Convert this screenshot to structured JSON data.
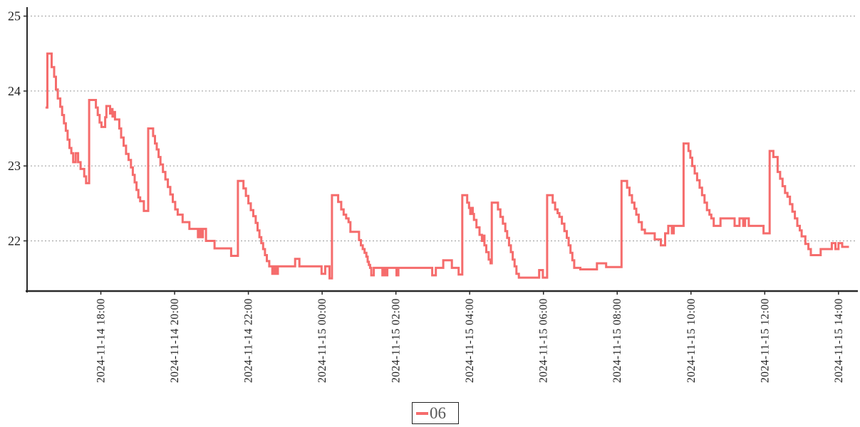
{
  "chart_data": {
    "type": "line",
    "step": "after",
    "title": "",
    "xlabel": "",
    "ylabel": "",
    "grid": "horizontal-dotted",
    "legend_position": "bottom-center",
    "series": [
      {
        "name": "06",
        "color": "#f56c6c",
        "line_width": 3,
        "points_format": "[minutes_since_2024-11-14T16:00, value]",
        "points": [
          [
            30,
            23.78
          ],
          [
            33,
            24.5
          ],
          [
            38,
            24.5
          ],
          [
            40,
            24.32
          ],
          [
            44,
            24.19
          ],
          [
            47,
            24.02
          ],
          [
            50,
            23.9
          ],
          [
            54,
            23.79
          ],
          [
            57,
            23.68
          ],
          [
            60,
            23.57
          ],
          [
            63,
            23.47
          ],
          [
            66,
            23.35
          ],
          [
            69,
            23.24
          ],
          [
            72,
            23.17
          ],
          [
            75,
            23.05
          ],
          [
            79,
            23.17
          ],
          [
            83,
            23.05
          ],
          [
            87,
            22.96
          ],
          [
            93,
            22.86
          ],
          [
            96,
            22.77
          ],
          [
            101,
            23.88
          ],
          [
            110,
            23.88
          ],
          [
            112,
            23.78
          ],
          [
            115,
            23.68
          ],
          [
            118,
            23.58
          ],
          [
            121,
            23.52
          ],
          [
            126,
            23.52
          ],
          [
            127,
            23.65
          ],
          [
            129,
            23.8
          ],
          [
            134,
            23.8
          ],
          [
            135,
            23.7
          ],
          [
            137,
            23.76
          ],
          [
            139,
            23.66
          ],
          [
            141,
            23.72
          ],
          [
            143,
            23.62
          ],
          [
            148,
            23.62
          ],
          [
            150,
            23.5
          ],
          [
            153,
            23.38
          ],
          [
            157,
            23.27
          ],
          [
            161,
            23.16
          ],
          [
            165,
            23.08
          ],
          [
            169,
            22.98
          ],
          [
            172,
            22.88
          ],
          [
            175,
            22.78
          ],
          [
            178,
            22.68
          ],
          [
            181,
            22.58
          ],
          [
            184,
            22.53
          ],
          [
            189,
            22.53
          ],
          [
            190,
            22.4
          ],
          [
            196,
            22.4
          ],
          [
            197,
            23.5
          ],
          [
            203,
            23.5
          ],
          [
            205,
            23.4
          ],
          [
            208,
            23.3
          ],
          [
            211,
            23.22
          ],
          [
            214,
            23.12
          ],
          [
            217,
            23.02
          ],
          [
            221,
            22.92
          ],
          [
            225,
            22.82
          ],
          [
            229,
            22.72
          ],
          [
            233,
            22.62
          ],
          [
            237,
            22.52
          ],
          [
            241,
            22.42
          ],
          [
            245,
            22.35
          ],
          [
            252,
            22.35
          ],
          [
            253,
            22.25
          ],
          [
            262,
            22.25
          ],
          [
            264,
            22.16
          ],
          [
            276,
            22.16
          ],
          [
            278,
            22.05
          ],
          [
            280,
            22.16
          ],
          [
            283,
            22.05
          ],
          [
            286,
            22.16
          ],
          [
            289,
            22.16
          ],
          [
            291,
            22.0
          ],
          [
            303,
            22.0
          ],
          [
            305,
            21.9
          ],
          [
            330,
            21.9
          ],
          [
            332,
            21.8
          ],
          [
            341,
            21.8
          ],
          [
            343,
            22.8
          ],
          [
            350,
            22.8
          ],
          [
            352,
            22.7
          ],
          [
            356,
            22.6
          ],
          [
            360,
            22.5
          ],
          [
            364,
            22.41
          ],
          [
            368,
            22.33
          ],
          [
            372,
            22.24
          ],
          [
            375,
            22.14
          ],
          [
            378,
            22.05
          ],
          [
            381,
            21.97
          ],
          [
            384,
            21.89
          ],
          [
            387,
            21.81
          ],
          [
            390,
            21.73
          ],
          [
            394,
            21.66
          ],
          [
            397,
            21.66
          ],
          [
            399,
            21.56
          ],
          [
            402,
            21.66
          ],
          [
            405,
            21.56
          ],
          [
            408,
            21.66
          ],
          [
            434,
            21.66
          ],
          [
            436,
            21.76
          ],
          [
            441,
            21.76
          ],
          [
            443,
            21.66
          ],
          [
            477,
            21.66
          ],
          [
            479,
            21.56
          ],
          [
            485,
            21.66
          ],
          [
            490,
            21.66
          ],
          [
            492,
            21.5
          ],
          [
            495,
            21.5
          ],
          [
            496,
            22.61
          ],
          [
            504,
            22.61
          ],
          [
            506,
            22.52
          ],
          [
            511,
            22.42
          ],
          [
            515,
            22.35
          ],
          [
            519,
            22.3
          ],
          [
            523,
            22.25
          ],
          [
            526,
            22.12
          ],
          [
            538,
            22.12
          ],
          [
            540,
            22.01
          ],
          [
            543,
            21.94
          ],
          [
            546,
            21.89
          ],
          [
            549,
            21.84
          ],
          [
            552,
            21.79
          ],
          [
            554,
            21.72
          ],
          [
            556,
            21.68
          ],
          [
            558,
            21.64
          ],
          [
            560,
            21.54
          ],
          [
            564,
            21.64
          ],
          [
            576,
            21.64
          ],
          [
            578,
            21.54
          ],
          [
            581,
            21.64
          ],
          [
            583,
            21.54
          ],
          [
            586,
            21.64
          ],
          [
            599,
            21.64
          ],
          [
            601,
            21.54
          ],
          [
            604,
            21.64
          ],
          [
            657,
            21.64
          ],
          [
            659,
            21.54
          ],
          [
            665,
            21.64
          ],
          [
            675,
            21.64
          ],
          [
            677,
            21.74
          ],
          [
            689,
            21.74
          ],
          [
            691,
            21.64
          ],
          [
            700,
            21.64
          ],
          [
            702,
            21.55
          ],
          [
            706,
            21.55
          ],
          [
            708,
            22.61
          ],
          [
            714,
            22.61
          ],
          [
            716,
            22.51
          ],
          [
            719,
            22.44
          ],
          [
            721,
            22.36
          ],
          [
            723,
            22.44
          ],
          [
            725,
            22.36
          ],
          [
            727,
            22.28
          ],
          [
            731,
            22.18
          ],
          [
            736,
            22.08
          ],
          [
            740,
            22.0
          ],
          [
            742,
            22.07
          ],
          [
            744,
            21.94
          ],
          [
            747,
            21.85
          ],
          [
            751,
            21.75
          ],
          [
            754,
            21.7
          ],
          [
            756,
            22.51
          ],
          [
            764,
            22.51
          ],
          [
            766,
            22.42
          ],
          [
            770,
            22.32
          ],
          [
            774,
            22.23
          ],
          [
            778,
            22.13
          ],
          [
            781,
            22.04
          ],
          [
            784,
            21.94
          ],
          [
            787,
            21.85
          ],
          [
            790,
            21.75
          ],
          [
            793,
            21.66
          ],
          [
            796,
            21.56
          ],
          [
            800,
            21.51
          ],
          [
            831,
            21.51
          ],
          [
            833,
            21.61
          ],
          [
            837,
            21.61
          ],
          [
            839,
            21.51
          ],
          [
            844,
            21.51
          ],
          [
            846,
            22.61
          ],
          [
            853,
            22.61
          ],
          [
            855,
            22.51
          ],
          [
            859,
            22.42
          ],
          [
            863,
            22.37
          ],
          [
            866,
            22.32
          ],
          [
            870,
            22.23
          ],
          [
            874,
            22.13
          ],
          [
            878,
            22.04
          ],
          [
            881,
            21.94
          ],
          [
            884,
            21.84
          ],
          [
            887,
            21.74
          ],
          [
            890,
            21.64
          ],
          [
            898,
            21.64
          ],
          [
            900,
            21.62
          ],
          [
            925,
            21.62
          ],
          [
            927,
            21.7
          ],
          [
            940,
            21.7
          ],
          [
            942,
            21.65
          ],
          [
            965,
            21.65
          ],
          [
            967,
            22.8
          ],
          [
            974,
            22.8
          ],
          [
            976,
            22.71
          ],
          [
            980,
            22.61
          ],
          [
            984,
            22.51
          ],
          [
            988,
            22.43
          ],
          [
            991,
            22.35
          ],
          [
            995,
            22.25
          ],
          [
            1000,
            22.15
          ],
          [
            1005,
            22.1
          ],
          [
            1019,
            22.1
          ],
          [
            1021,
            22.02
          ],
          [
            1029,
            22.02
          ],
          [
            1031,
            21.94
          ],
          [
            1036,
            21.94
          ],
          [
            1038,
            22.1
          ],
          [
            1041,
            22.1
          ],
          [
            1043,
            22.2
          ],
          [
            1047,
            22.2
          ],
          [
            1049,
            22.1
          ],
          [
            1052,
            22.2
          ],
          [
            1066,
            22.2
          ],
          [
            1068,
            23.3
          ],
          [
            1074,
            23.3
          ],
          [
            1076,
            23.2
          ],
          [
            1079,
            23.11
          ],
          [
            1082,
            23.0
          ],
          [
            1086,
            22.9
          ],
          [
            1090,
            22.81
          ],
          [
            1094,
            22.71
          ],
          [
            1098,
            22.61
          ],
          [
            1102,
            22.51
          ],
          [
            1106,
            22.41
          ],
          [
            1110,
            22.35
          ],
          [
            1113,
            22.3
          ],
          [
            1117,
            22.2
          ],
          [
            1126,
            22.2
          ],
          [
            1128,
            22.3
          ],
          [
            1149,
            22.3
          ],
          [
            1151,
            22.2
          ],
          [
            1157,
            22.2
          ],
          [
            1159,
            22.3
          ],
          [
            1163,
            22.3
          ],
          [
            1165,
            22.2
          ],
          [
            1168,
            22.3
          ],
          [
            1172,
            22.3
          ],
          [
            1174,
            22.2
          ],
          [
            1196,
            22.2
          ],
          [
            1198,
            22.1
          ],
          [
            1206,
            22.1
          ],
          [
            1208,
            23.2
          ],
          [
            1212,
            23.2
          ],
          [
            1214,
            23.12
          ],
          [
            1219,
            23.12
          ],
          [
            1221,
            22.92
          ],
          [
            1225,
            22.83
          ],
          [
            1229,
            22.73
          ],
          [
            1233,
            22.64
          ],
          [
            1237,
            22.59
          ],
          [
            1241,
            22.49
          ],
          [
            1245,
            22.39
          ],
          [
            1249,
            22.3
          ],
          [
            1253,
            22.2
          ],
          [
            1257,
            22.14
          ],
          [
            1260,
            22.06
          ],
          [
            1266,
            21.96
          ],
          [
            1271,
            21.89
          ],
          [
            1275,
            21.81
          ],
          [
            1289,
            21.81
          ],
          [
            1291,
            21.89
          ],
          [
            1307,
            21.89
          ],
          [
            1309,
            21.97
          ],
          [
            1313,
            21.97
          ],
          [
            1315,
            21.89
          ],
          [
            1318,
            21.89
          ],
          [
            1320,
            21.97
          ],
          [
            1324,
            21.97
          ],
          [
            1326,
            21.92
          ],
          [
            1337,
            21.92
          ]
        ]
      }
    ],
    "x_ticks": [
      {
        "minutes": 120,
        "label": "2024-11-14 18:00"
      },
      {
        "minutes": 240,
        "label": "2024-11-14 20:00"
      },
      {
        "minutes": 360,
        "label": "2024-11-14 22:00"
      },
      {
        "minutes": 480,
        "label": "2024-11-15 00:00"
      },
      {
        "minutes": 600,
        "label": "2024-11-15 02:00"
      },
      {
        "minutes": 720,
        "label": "2024-11-15 04:00"
      },
      {
        "minutes": 840,
        "label": "2024-11-15 06:00"
      },
      {
        "minutes": 960,
        "label": "2024-11-15 08:00"
      },
      {
        "minutes": 1080,
        "label": "2024-11-15 10:00"
      },
      {
        "minutes": 1200,
        "label": "2024-11-15 12:00"
      },
      {
        "minutes": 1320,
        "label": "2024-11-15 14:00"
      }
    ],
    "y_ticks": [
      {
        "value": 22,
        "label": "22"
      },
      {
        "value": 23,
        "label": "23"
      },
      {
        "value": 24,
        "label": "24"
      },
      {
        "value": 25,
        "label": "25"
      }
    ],
    "xlim_minutes": [
      0,
      1348
    ],
    "ylim": [
      21.33,
      25.12
    ]
  },
  "legend": {
    "label": "06"
  },
  "colors": {
    "series": "#f56c6c",
    "axis": "#2a2a2a",
    "grid": "#9a9a9a",
    "tick_text": "#1f1f1f",
    "legend_text": "#595959",
    "background": "#ffffff"
  }
}
